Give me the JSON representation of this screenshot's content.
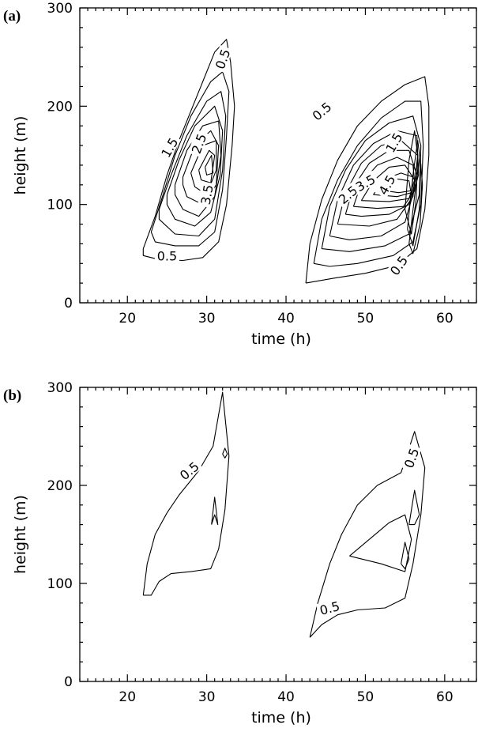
{
  "chart_data": [
    {
      "type": "contour",
      "panel_label": "(a)",
      "xlabel": "time (h)",
      "ylabel": "height (m)",
      "xlim": [
        14,
        64
      ],
      "ylim": [
        0,
        300
      ],
      "x_ticks": [
        20,
        30,
        40,
        50,
        60
      ],
      "y_ticks": [
        0,
        100,
        200,
        300
      ],
      "contour_labels": [
        {
          "text": "0.5",
          "x": 32.0,
          "y": 248,
          "rot": -70
        },
        {
          "text": "1.5",
          "x": 25.3,
          "y": 158,
          "rot": -60
        },
        {
          "text": "2.5",
          "x": 29.0,
          "y": 162,
          "rot": -70
        },
        {
          "text": "3.5",
          "x": 30.0,
          "y": 110,
          "rot": -80
        },
        {
          "text": "0.5",
          "x": 25.0,
          "y": 48,
          "rot": 0
        },
        {
          "text": "0.5",
          "x": 44.5,
          "y": 195,
          "rot": -40
        },
        {
          "text": "1.5",
          "x": 53.6,
          "y": 163,
          "rot": -60
        },
        {
          "text": "2.5",
          "x": 47.8,
          "y": 110,
          "rot": -40
        },
        {
          "text": "3.5",
          "x": 50.0,
          "y": 122,
          "rot": -30
        },
        {
          "text": "4.5",
          "x": 52.7,
          "y": 120,
          "rot": -60
        },
        {
          "text": "0.5",
          "x": 54.2,
          "y": 38,
          "rot": -55
        }
      ],
      "contours": [
        [
          [
            22.0,
            55
          ],
          [
            23.5,
            88
          ],
          [
            25.0,
            130
          ],
          [
            26.5,
            165
          ],
          [
            28.5,
            205
          ],
          [
            31.0,
            255
          ],
          [
            32.5,
            268
          ],
          [
            33.0,
            245
          ],
          [
            33.5,
            200
          ],
          [
            33.2,
            160
          ],
          [
            32.5,
            100
          ],
          [
            31.5,
            62
          ],
          [
            29.5,
            46
          ],
          [
            27.0,
            43
          ],
          [
            24.0,
            44
          ],
          [
            22.0,
            48
          ],
          [
            22.0,
            55
          ]
        ],
        [
          [
            23.0,
            72
          ],
          [
            24.5,
            110
          ],
          [
            26.0,
            150
          ],
          [
            28.0,
            190
          ],
          [
            30.5,
            225
          ],
          [
            32.0,
            235
          ],
          [
            32.8,
            215
          ],
          [
            32.5,
            170
          ],
          [
            32.0,
            115
          ],
          [
            31.0,
            72
          ],
          [
            29.0,
            58
          ],
          [
            26.0,
            58
          ],
          [
            23.5,
            62
          ],
          [
            23.0,
            72
          ]
        ],
        [
          [
            24.0,
            95
          ],
          [
            25.5,
            130
          ],
          [
            27.5,
            170
          ],
          [
            30.0,
            205
          ],
          [
            31.8,
            215
          ],
          [
            32.4,
            190
          ],
          [
            32.0,
            135
          ],
          [
            31.0,
            85
          ],
          [
            29.0,
            68
          ],
          [
            26.0,
            70
          ],
          [
            24.0,
            85
          ],
          [
            24.0,
            95
          ]
        ],
        [
          [
            25.0,
            110
          ],
          [
            26.5,
            145
          ],
          [
            28.5,
            180
          ],
          [
            31.0,
            200
          ],
          [
            32.0,
            175
          ],
          [
            31.7,
            130
          ],
          [
            30.5,
            92
          ],
          [
            28.5,
            78
          ],
          [
            26.0,
            85
          ],
          [
            25.0,
            100
          ],
          [
            25.0,
            110
          ]
        ],
        [
          [
            26.0,
            120
          ],
          [
            27.5,
            155
          ],
          [
            29.5,
            180
          ],
          [
            31.5,
            185
          ],
          [
            31.8,
            150
          ],
          [
            31.0,
            108
          ],
          [
            29.0,
            88
          ],
          [
            27.0,
            95
          ],
          [
            26.0,
            110
          ],
          [
            26.0,
            120
          ]
        ],
        [
          [
            27.0,
            128
          ],
          [
            28.5,
            160
          ],
          [
            30.5,
            175
          ],
          [
            31.5,
            160
          ],
          [
            31.2,
            120
          ],
          [
            29.5,
            100
          ],
          [
            27.5,
            108
          ],
          [
            27.0,
            120
          ],
          [
            27.0,
            128
          ]
        ],
        [
          [
            28.0,
            132
          ],
          [
            29.5,
            160
          ],
          [
            31.2,
            165
          ],
          [
            31.2,
            135
          ],
          [
            30.0,
            110
          ],
          [
            28.5,
            118
          ],
          [
            28.0,
            132
          ]
        ],
        [
          [
            29.0,
            135
          ],
          [
            30.3,
            155
          ],
          [
            31.0,
            150
          ],
          [
            30.5,
            122
          ],
          [
            29.3,
            125
          ],
          [
            29.0,
            135
          ]
        ],
        [
          [
            29.8,
            138
          ],
          [
            30.6,
            150
          ],
          [
            30.8,
            132
          ],
          [
            30.0,
            130
          ],
          [
            29.8,
            138
          ]
        ],
        [
          [
            42.5,
            20
          ],
          [
            43.0,
            60
          ],
          [
            44.5,
            105
          ],
          [
            46.5,
            145
          ],
          [
            49.0,
            180
          ],
          [
            52.0,
            205
          ],
          [
            55.0,
            222
          ],
          [
            57.5,
            230
          ],
          [
            58.0,
            200
          ],
          [
            58.0,
            150
          ],
          [
            57.5,
            95
          ],
          [
            56.5,
            55
          ],
          [
            54.0,
            38
          ],
          [
            50.0,
            30
          ],
          [
            46.0,
            25
          ],
          [
            42.5,
            20
          ]
        ],
        [
          [
            43.5,
            40
          ],
          [
            44.5,
            85
          ],
          [
            46.5,
            125
          ],
          [
            49.0,
            160
          ],
          [
            52.0,
            188
          ],
          [
            55.0,
            205
          ],
          [
            57.0,
            205
          ],
          [
            57.3,
            160
          ],
          [
            57.0,
            100
          ],
          [
            56.0,
            62
          ],
          [
            53.5,
            48
          ],
          [
            49.0,
            40
          ],
          [
            45.5,
            37
          ],
          [
            43.5,
            40
          ]
        ],
        [
          [
            44.5,
            55
          ],
          [
            45.5,
            98
          ],
          [
            47.5,
            135
          ],
          [
            50.0,
            165
          ],
          [
            53.0,
            183
          ],
          [
            56.0,
            190
          ],
          [
            57.0,
            160
          ],
          [
            56.8,
            110
          ],
          [
            55.5,
            70
          ],
          [
            52.5,
            58
          ],
          [
            48.0,
            52
          ],
          [
            44.5,
            55
          ]
        ],
        [
          [
            45.5,
            68
          ],
          [
            46.5,
            105
          ],
          [
            48.5,
            140
          ],
          [
            51.0,
            162
          ],
          [
            54.0,
            175
          ],
          [
            56.5,
            170
          ],
          [
            56.7,
            130
          ],
          [
            55.0,
            82
          ],
          [
            52.0,
            68
          ],
          [
            48.0,
            64
          ],
          [
            45.5,
            68
          ]
        ],
        [
          [
            46.5,
            80
          ],
          [
            47.5,
            112
          ],
          [
            49.5,
            142
          ],
          [
            52.0,
            160
          ],
          [
            54.5,
            165
          ],
          [
            56.6,
            150
          ],
          [
            56.0,
            108
          ],
          [
            54.0,
            85
          ],
          [
            50.5,
            78
          ],
          [
            46.5,
            80
          ]
        ],
        [
          [
            47.5,
            90
          ],
          [
            48.5,
            118
          ],
          [
            50.5,
            142
          ],
          [
            53.0,
            155
          ],
          [
            55.5,
            155
          ],
          [
            56.5,
            130
          ],
          [
            55.5,
            100
          ],
          [
            53.0,
            90
          ],
          [
            49.5,
            88
          ],
          [
            47.5,
            90
          ]
        ],
        [
          [
            48.5,
            98
          ],
          [
            49.5,
            122
          ],
          [
            51.5,
            140
          ],
          [
            54.0,
            148
          ],
          [
            56.0,
            140
          ],
          [
            56.3,
            115
          ],
          [
            54.8,
            98
          ],
          [
            51.5,
            96
          ],
          [
            48.5,
            98
          ]
        ],
        [
          [
            49.5,
            104
          ],
          [
            51.0,
            124
          ],
          [
            53.0,
            138
          ],
          [
            55.0,
            140
          ],
          [
            56.2,
            125
          ],
          [
            55.5,
            106
          ],
          [
            53.0,
            103
          ],
          [
            49.5,
            104
          ]
        ],
        [
          [
            51.0,
            110
          ],
          [
            52.5,
            126
          ],
          [
            54.5,
            132
          ],
          [
            56.0,
            128
          ],
          [
            55.8,
            112
          ],
          [
            54.0,
            108
          ],
          [
            51.0,
            110
          ]
        ],
        [
          [
            52.5,
            114
          ],
          [
            54.0,
            126
          ],
          [
            55.5,
            124
          ],
          [
            55.7,
            114
          ],
          [
            54.2,
            112
          ],
          [
            52.5,
            114
          ]
        ],
        [
          [
            55.0,
            95
          ],
          [
            55.5,
            145
          ],
          [
            56.2,
            175
          ],
          [
            56.6,
            150
          ],
          [
            56.4,
            105
          ],
          [
            55.8,
            70
          ],
          [
            55.0,
            95
          ]
        ],
        [
          [
            55.3,
            75
          ],
          [
            56.0,
            130
          ],
          [
            56.6,
            165
          ],
          [
            57.0,
            140
          ],
          [
            56.8,
            95
          ],
          [
            56.0,
            58
          ],
          [
            55.3,
            75
          ]
        ],
        [
          [
            55.5,
            60
          ],
          [
            56.3,
            115
          ],
          [
            56.9,
            150
          ],
          [
            57.2,
            120
          ],
          [
            56.9,
            80
          ],
          [
            56.0,
            50
          ],
          [
            55.5,
            60
          ]
        ]
      ]
    },
    {
      "type": "contour",
      "panel_label": "(b)",
      "xlabel": "time (h)",
      "ylabel": "height (m)",
      "xlim": [
        14,
        64
      ],
      "ylim": [
        0,
        300
      ],
      "x_ticks": [
        20,
        30,
        40,
        50,
        60
      ],
      "y_ticks": [
        0,
        100,
        200,
        300
      ],
      "contour_labels": [
        {
          "text": "0.5",
          "x": 27.8,
          "y": 215,
          "rot": -40
        },
        {
          "text": "0.5",
          "x": 55.8,
          "y": 228,
          "rot": -70
        },
        {
          "text": "0.5",
          "x": 45.5,
          "y": 75,
          "rot": -15
        }
      ],
      "contours": [
        [
          [
            22.0,
            88
          ],
          [
            22.5,
            120
          ],
          [
            23.5,
            150
          ],
          [
            25.0,
            172
          ],
          [
            26.5,
            190
          ],
          [
            29.0,
            215
          ],
          [
            30.8,
            240
          ],
          [
            32.0,
            295
          ],
          [
            32.8,
            230
          ],
          [
            32.3,
            175
          ],
          [
            31.5,
            135
          ],
          [
            30.5,
            115
          ],
          [
            28.0,
            112
          ],
          [
            25.5,
            110
          ],
          [
            24.0,
            102
          ],
          [
            23.0,
            88
          ],
          [
            22.0,
            88
          ]
        ],
        [
          [
            30.6,
            160
          ],
          [
            31.0,
            188
          ],
          [
            31.4,
            160
          ],
          [
            31.0,
            170
          ],
          [
            30.6,
            160
          ]
        ],
        [
          [
            32.0,
            232
          ],
          [
            32.3,
            238
          ],
          [
            32.6,
            232
          ],
          [
            32.3,
            228
          ],
          [
            32.0,
            232
          ]
        ],
        [
          [
            43.0,
            45
          ],
          [
            44.0,
            80
          ],
          [
            45.5,
            120
          ],
          [
            47.0,
            150
          ],
          [
            49.0,
            180
          ],
          [
            51.5,
            200
          ],
          [
            54.5,
            213
          ],
          [
            56.2,
            255
          ],
          [
            57.5,
            218
          ],
          [
            57.0,
            170
          ],
          [
            56.0,
            120
          ],
          [
            55.0,
            85
          ],
          [
            52.5,
            75
          ],
          [
            49.0,
            73
          ],
          [
            46.5,
            68
          ],
          [
            44.5,
            58
          ],
          [
            43.0,
            45
          ]
        ],
        [
          [
            48.0,
            128
          ],
          [
            50.5,
            145
          ],
          [
            53.0,
            162
          ],
          [
            55.0,
            170
          ],
          [
            55.8,
            145
          ],
          [
            55.0,
            112
          ],
          [
            52.0,
            120
          ],
          [
            48.0,
            128
          ]
        ],
        [
          [
            55.5,
            160
          ],
          [
            56.2,
            195
          ],
          [
            56.8,
            170
          ],
          [
            56.2,
            160
          ],
          [
            55.5,
            160
          ]
        ],
        [
          [
            54.5,
            120
          ],
          [
            55.0,
            142
          ],
          [
            55.5,
            125
          ],
          [
            55.0,
            115
          ],
          [
            54.5,
            120
          ]
        ]
      ]
    }
  ]
}
